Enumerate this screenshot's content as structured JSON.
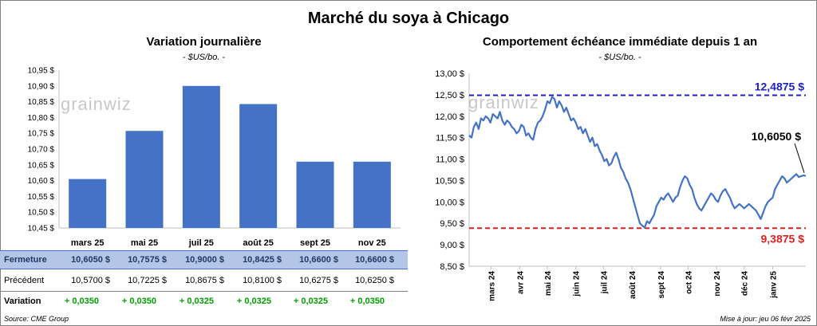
{
  "title": "Marché du soya à Chicago",
  "left": {
    "title": "Variation journalière",
    "unit": "- $US/bo. -"
  },
  "right": {
    "title": "Comportement échéance immédiate depuis 1 an",
    "unit": "- $US/bo. -"
  },
  "watermark": "grainwiz",
  "table": {
    "fermeture_label": "Fermeture",
    "precedent_label": "Précédent",
    "variation_label": "Variation",
    "fermeture": [
      "10,6050  $",
      "10,7575  $",
      "10,9000  $",
      "10,8425  $",
      "10,6600  $",
      "10,6600  $"
    ],
    "precedent": [
      "10,5700  $",
      "10,7225  $",
      "10,8675  $",
      "10,8100  $",
      "10,6275  $",
      "10,6250  $"
    ],
    "variation": [
      "+ 0,0350",
      "+ 0,0350",
      "+ 0,0325",
      "+ 0,0325",
      "+ 0,0325",
      "+ 0,0350"
    ]
  },
  "footer": {
    "source": "Source: CME Group",
    "updated": "Mise à jour: jeu 06 févr 2025"
  },
  "colors": {
    "bar": "#4472c4",
    "line": "#4472c4",
    "high": "#2020c0",
    "low": "#e02020",
    "table_fill": "#b4c6e7",
    "positive": "#00a000"
  },
  "chart_data": [
    {
      "type": "bar",
      "categories": [
        "mars 25",
        "mai 25",
        "juil 25",
        "août 25",
        "sept 25",
        "nov 25"
      ],
      "values": [
        10.605,
        10.7575,
        10.9,
        10.8425,
        10.66,
        10.66
      ],
      "ylim": [
        10.45,
        10.95
      ],
      "yticks": [
        "10,45 $",
        "10,50 $",
        "10,55 $",
        "10,60 $",
        "10,65 $",
        "10,70 $",
        "10,75 $",
        "10,80 $",
        "10,85 $",
        "10,90 $",
        "10,95 $"
      ],
      "grid": false
    },
    {
      "type": "line",
      "ylim": [
        8.5,
        13.0
      ],
      "yticks": [
        "8,50 $",
        "9,00 $",
        "9,50 $",
        "10,00 $",
        "10,50 $",
        "11,00 $",
        "11,50 $",
        "12,00 $",
        "12,50 $",
        "13,00 $"
      ],
      "xticks": [
        "mars 24",
        "avr 24",
        "mai 24",
        "juin 24",
        "juil 24",
        "août 24",
        "sept 24",
        "oct 24",
        "nov 24",
        "déc 24",
        "janv 25"
      ],
      "x_start": "2024-02-06",
      "x_end": "2025-02-06",
      "high": {
        "value": 12.4875,
        "label": "12,4875  $"
      },
      "low": {
        "value": 9.3875,
        "label": "9,3875  $"
      },
      "last": {
        "value": 10.605,
        "label": "10,6050  $"
      },
      "series": [
        {
          "values": [
            11.55,
            11.5,
            11.75,
            11.85,
            11.7,
            11.95,
            11.9,
            12.0,
            11.95,
            11.85,
            12.05,
            12.0,
            11.95,
            12.1,
            11.9,
            11.8,
            11.9,
            11.85,
            11.75,
            11.7,
            11.6,
            11.65,
            11.8,
            11.75,
            11.55,
            11.6,
            11.5,
            11.45,
            11.7,
            11.85,
            11.9,
            12.0,
            12.15,
            12.35,
            12.3,
            12.45,
            12.4,
            12.2,
            12.35,
            12.25,
            12.1,
            12.2,
            12.05,
            11.9,
            11.95,
            11.85,
            11.7,
            11.75,
            11.6,
            11.7,
            11.55,
            11.4,
            11.5,
            11.3,
            11.35,
            11.2,
            11.1,
            10.95,
            11.0,
            10.85,
            10.9,
            11.05,
            11.15,
            11.0,
            10.8,
            10.7,
            10.55,
            10.45,
            10.3,
            10.1,
            9.9,
            9.7,
            9.5,
            9.45,
            9.4,
            9.55,
            9.5,
            9.6,
            9.7,
            9.9,
            10.0,
            10.1,
            10.05,
            10.15,
            10.2,
            10.1,
            10.0,
            10.1,
            10.15,
            10.35,
            10.5,
            10.6,
            10.55,
            10.4,
            10.3,
            10.1,
            9.95,
            9.85,
            9.8,
            9.9,
            10.0,
            10.1,
            10.2,
            10.15,
            10.05,
            10.0,
            10.15,
            10.25,
            10.3,
            10.2,
            10.1,
            9.95,
            9.85,
            9.9,
            9.95,
            9.9,
            9.85,
            9.9,
            9.95,
            9.9,
            9.85,
            9.8,
            9.7,
            9.6,
            9.75,
            9.9,
            10.0,
            10.05,
            10.1,
            10.3,
            10.4,
            10.5,
            10.6,
            10.55,
            10.45,
            10.5,
            10.55,
            10.6,
            10.65,
            10.58,
            10.6,
            10.62,
            10.605
          ]
        }
      ]
    }
  ]
}
